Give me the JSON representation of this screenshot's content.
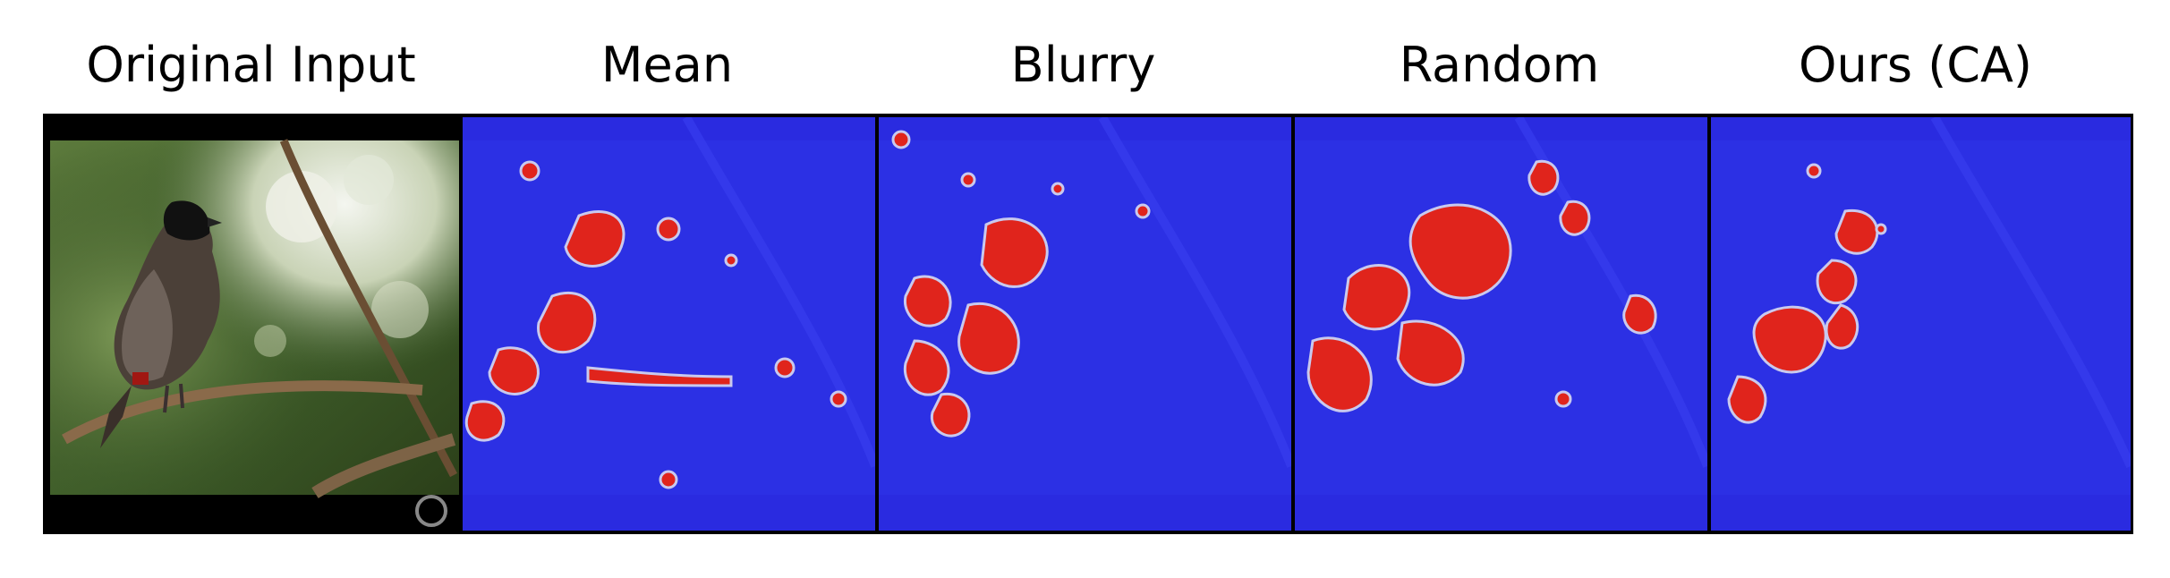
{
  "figure": {
    "panels": [
      {
        "id": "original",
        "title": "Original Input",
        "icon": "bird-photo"
      },
      {
        "id": "mean",
        "title": "Mean",
        "icon": "saliency-heatmap"
      },
      {
        "id": "blurry",
        "title": "Blurry",
        "icon": "saliency-heatmap"
      },
      {
        "id": "random",
        "title": "Random",
        "icon": "saliency-heatmap"
      },
      {
        "id": "ours",
        "title": "Ours (CA)",
        "icon": "saliency-heatmap"
      }
    ],
    "colors": {
      "heatmap_base": "#2a2be0",
      "heatmap_hot": "#e0241c",
      "heatmap_edge": "#c9c9ee",
      "frame": "#000000",
      "photo_background": "#3f5e2a"
    }
  }
}
